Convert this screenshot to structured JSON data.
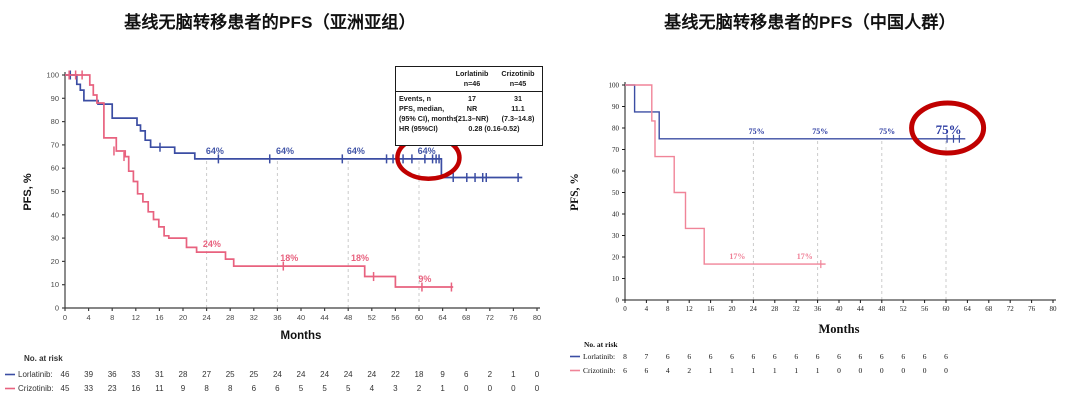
{
  "accent": {
    "highlight_red": "#c00000",
    "gridline": "#cbcbcb",
    "background": "#ffffff"
  },
  "chart_data": [
    {
      "id": "asia",
      "type": "line",
      "title": "基线无脑转移患者的PFS（亚洲亚组）",
      "xlabel": "Months",
      "ylabel": "PFS, %",
      "xlim": [
        0,
        80
      ],
      "ylim": [
        0,
        100
      ],
      "x_ticks": [
        0,
        4,
        8,
        12,
        16,
        20,
        24,
        28,
        32,
        36,
        40,
        44,
        48,
        52,
        56,
        60,
        64,
        68,
        72,
        76,
        80
      ],
      "y_ticks": [
        0,
        10,
        20,
        30,
        40,
        50,
        60,
        70,
        80,
        90,
        100
      ],
      "dashed_vlines": [
        24,
        36,
        48,
        60
      ],
      "vline_top_pct": 64,
      "series": [
        {
          "name": "Lorlatinib",
          "color": "#3b4da3",
          "label_color": "#4356a8",
          "points": [
            [
              0,
              100
            ],
            [
              2,
              96
            ],
            [
              2.6,
              93.5
            ],
            [
              3.2,
              89
            ],
            [
              5.6,
              87.5
            ],
            [
              8,
              81.5
            ],
            [
              12.2,
              78.5
            ],
            [
              12.8,
              76
            ],
            [
              13.6,
              72
            ],
            [
              14.5,
              69
            ],
            [
              18.6,
              66.5
            ],
            [
              22,
              64
            ],
            [
              63.8,
              56
            ]
          ],
          "end": 77.5,
          "censors": [
            [
              0.9,
              100
            ],
            [
              16.1,
              69
            ],
            [
              26,
              64
            ],
            [
              34.7,
              64
            ],
            [
              47,
              64
            ],
            [
              54.5,
              64
            ],
            [
              55.6,
              64
            ],
            [
              57.3,
              64
            ],
            [
              58.8,
              64
            ],
            [
              61,
              64
            ],
            [
              62.3,
              64
            ],
            [
              62.9,
              64
            ],
            [
              63.4,
              64
            ],
            [
              65.8,
              56
            ],
            [
              68.1,
              56
            ],
            [
              69.5,
              56
            ],
            [
              70.8,
              56
            ],
            [
              71.4,
              56
            ],
            [
              76.8,
              56
            ]
          ],
          "annotations": [
            {
              "x": 25.4,
              "y": 64,
              "text": "64%"
            },
            {
              "x": 37.3,
              "y": 64,
              "text": "64%"
            },
            {
              "x": 49.3,
              "y": 64,
              "text": "64%"
            },
            {
              "x": 61.3,
              "y": 64,
              "text": "64%"
            }
          ]
        },
        {
          "name": "Crizotinib",
          "color": "#e8627f",
          "label_color": "#e8627f",
          "points": [
            [
              0,
              100
            ],
            [
              4.2,
              95.7
            ],
            [
              4.8,
              91.4
            ],
            [
              5.4,
              88
            ],
            [
              6.6,
              73
            ],
            [
              8.7,
              67.4
            ],
            [
              10.2,
              65
            ],
            [
              10.8,
              58.7
            ],
            [
              11.6,
              54.3
            ],
            [
              12.3,
              49
            ],
            [
              13.2,
              45.6
            ],
            [
              14.1,
              41.3
            ],
            [
              15,
              38
            ],
            [
              15.9,
              34.8
            ],
            [
              16.8,
              31
            ],
            [
              17.6,
              30
            ],
            [
              20.6,
              26
            ],
            [
              22.3,
              24
            ],
            [
              27.2,
              21
            ],
            [
              28.6,
              18
            ],
            [
              50.8,
              13.5
            ],
            [
              56,
              9
            ]
          ],
          "end": 65.8,
          "censors": [
            [
              0.7,
              100
            ],
            [
              1.8,
              100
            ],
            [
              2.9,
              100
            ],
            [
              8.3,
              67.4
            ],
            [
              10,
              65
            ],
            [
              37,
              18
            ],
            [
              52.3,
              13.5
            ],
            [
              60.5,
              9
            ],
            [
              65.5,
              9
            ]
          ],
          "annotations": [
            {
              "x": 24.9,
              "y": 24,
              "text": "24%"
            },
            {
              "x": 38,
              "y": 18,
              "text": "18%"
            },
            {
              "x": 50,
              "y": 18,
              "text": "18%"
            },
            {
              "x": 61,
              "y": 9,
              "text": "9%"
            }
          ]
        }
      ],
      "highlight_circle": {
        "month": 61.6,
        "pct": 64.5,
        "note": "64% at 60 months circled in red"
      },
      "stats_box": {
        "col_headers": [
          {
            "line1": "Lorlatinib",
            "line2": "n=46"
          },
          {
            "line1": "Crizotinib",
            "line2": "n=45"
          }
        ],
        "rows": [
          {
            "label": "Events, n",
            "v1": "17",
            "v2": "31"
          },
          {
            "label": "PFS, median,",
            "v1": "NR",
            "v2": "11.1"
          },
          {
            "label": "(95% CI), months",
            "v1": "(21.3–NR)",
            "v2": "(7.3–14.8)"
          },
          {
            "label": "HR (95%CI)",
            "span": "0.28 (0.16-0.52)"
          }
        ]
      },
      "risk_table": {
        "title": "No. at risk",
        "rows": [
          {
            "name": "Lorlatinib:",
            "values": [
              "46",
              "39",
              "36",
              "33",
              "31",
              "28",
              "27",
              "25",
              "25",
              "24",
              "24",
              "24",
              "24",
              "24",
              "22",
              "18",
              "9",
              "6",
              "2",
              "1",
              "0"
            ]
          },
          {
            "name": "Crizotinib:",
            "values": [
              "45",
              "33",
              "23",
              "16",
              "11",
              "9",
              "8",
              "8",
              "6",
              "6",
              "5",
              "5",
              "5",
              "4",
              "3",
              "2",
              "1",
              "0",
              "0",
              "0",
              "0"
            ]
          }
        ]
      }
    },
    {
      "id": "china",
      "type": "line",
      "title": "基线无脑转移患者的PFS（中国人群）",
      "xlabel": "Months",
      "ylabel": "PFS, %",
      "xlim": [
        0,
        80
      ],
      "ylim": [
        0,
        100
      ],
      "x_ticks": [
        0,
        4,
        8,
        12,
        16,
        20,
        24,
        28,
        32,
        36,
        40,
        44,
        48,
        52,
        56,
        60,
        64,
        68,
        72,
        76,
        80
      ],
      "y_ticks": [
        0,
        10,
        20,
        30,
        40,
        50,
        60,
        70,
        80,
        90,
        100
      ],
      "dashed_vlines": [
        24,
        36,
        48,
        60
      ],
      "vline_top_pct": 75,
      "series": [
        {
          "name": "Lorlatinib",
          "color": "#3b4da3",
          "label_color": "#2b3ba2",
          "points": [
            [
              0,
              100
            ],
            [
              1.8,
              87.5
            ],
            [
              6.4,
              75
            ]
          ],
          "end": 63.6,
          "censors": [
            [
              60.2,
              75
            ],
            [
              61.4,
              75
            ],
            [
              62.5,
              75
            ]
          ],
          "annotations": [
            {
              "x": 24.6,
              "y": 75,
              "text": "75%"
            },
            {
              "x": 36.5,
              "y": 75,
              "text": "75%"
            },
            {
              "x": 49,
              "y": 75,
              "text": "75%"
            },
            {
              "x": 60.5,
              "y": 75,
              "text": "75%",
              "big": true
            }
          ]
        },
        {
          "name": "Crizotinib",
          "color": "#f08498",
          "label_color": "#ef7e95",
          "points": [
            [
              0,
              100
            ],
            [
              5,
              83.3
            ],
            [
              5.6,
              66.7
            ],
            [
              9.2,
              50
            ],
            [
              11.3,
              33.3
            ],
            [
              14.8,
              16.7
            ]
          ],
          "end": 37.5,
          "censors": [
            [
              36.6,
              16.7
            ]
          ],
          "annotations": [
            {
              "x": 21,
              "y": 16.7,
              "text": "17%"
            },
            {
              "x": 33.6,
              "y": 16.7,
              "text": "17%"
            }
          ]
        }
      ],
      "highlight_circle": {
        "month": 60.3,
        "pct": 80,
        "note": "75% at 60 months circled in red"
      },
      "risk_table": {
        "title": "No. at risk",
        "rows": [
          {
            "name": "Lorlatinib:",
            "values": [
              "8",
              "7",
              "6",
              "6",
              "6",
              "6",
              "6",
              "6",
              "6",
              "6",
              "6",
              "6",
              "6",
              "6",
              "6",
              "6"
            ]
          },
          {
            "name": "Crizotinib:",
            "values": [
              "6",
              "6",
              "4",
              "2",
              "1",
              "1",
              "1",
              "1",
              "1",
              "1",
              "0",
              "0",
              "0",
              "0",
              "0",
              "0"
            ]
          }
        ]
      }
    }
  ]
}
